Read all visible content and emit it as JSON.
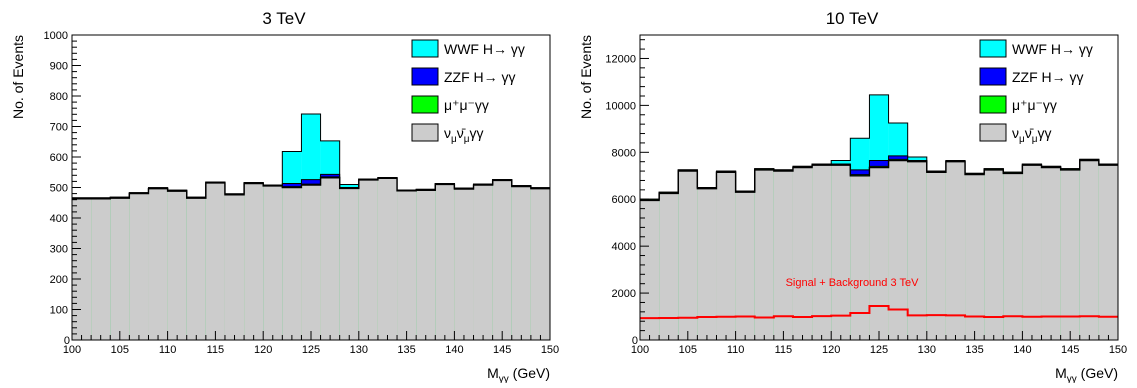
{
  "colors": {
    "wwf": "#00ffff",
    "zzf": "#0000ff",
    "mumu": "#00ff00",
    "nunu": "#cccccc",
    "outline": "#000000",
    "overlay": "#ff0000"
  },
  "chart_data": [
    {
      "type": "histogram-stacked",
      "title": "3 TeV",
      "xlabel": "M",
      "xlabel_sub": "γγ",
      "xlabel_unit": " (GeV)",
      "ylabel": "No. of Events",
      "xlim": [
        100,
        150
      ],
      "ylim": [
        0,
        1000
      ],
      "x_ticks": [
        100,
        105,
        110,
        115,
        120,
        125,
        130,
        135,
        140,
        145,
        150
      ],
      "y_ticks": [
        100,
        200,
        300,
        400,
        500,
        600,
        700,
        800,
        900,
        1000
      ],
      "y_tick_labels": [
        "100",
        "200",
        "300",
        "400",
        "500",
        "600",
        "700",
        "800",
        "900",
        "1000"
      ],
      "bin_edges": [
        100,
        102,
        104,
        106,
        108,
        110,
        112,
        114,
        116,
        118,
        120,
        122,
        124,
        126,
        128,
        130,
        132,
        134,
        136,
        138,
        140,
        142,
        144,
        146,
        148,
        150
      ],
      "legend_position": "top-right",
      "legend": [
        {
          "key": "wwf",
          "text": "WWF H→ γγ"
        },
        {
          "key": "zzf",
          "text": "ZZF H→ γγ"
        },
        {
          "key": "mumu",
          "text": "μ⁺μ⁻γγ"
        },
        {
          "key": "nunu",
          "text": "ν̅"
        }
      ],
      "series": [
        {
          "name": "ν_μν̄_μγγ",
          "key": "nunu",
          "values": [
            463,
            463,
            465,
            480,
            496,
            488,
            465,
            515,
            476,
            513,
            505,
            500,
            508,
            532,
            497,
            525,
            530,
            489,
            491,
            510,
            495,
            508,
            523,
            503,
            496
          ]
        },
        {
          "name": "μ⁺μ⁻γγ",
          "key": "mumu",
          "values": [
            3,
            3,
            3,
            3,
            3,
            3,
            3,
            3,
            3,
            3,
            3,
            3,
            3,
            3,
            3,
            3,
            3,
            3,
            3,
            3,
            3,
            3,
            3,
            3,
            3
          ]
        },
        {
          "name": "ZZF H→ γγ",
          "key": "zzf",
          "values": [
            0,
            0,
            0,
            0,
            0,
            0,
            0,
            0,
            0,
            0,
            0,
            10,
            15,
            8,
            0,
            0,
            0,
            0,
            0,
            0,
            0,
            0,
            0,
            0,
            0
          ]
        },
        {
          "name": "WWF H→ γγ",
          "key": "wwf",
          "values": [
            0,
            0,
            0,
            0,
            0,
            0,
            0,
            0,
            0,
            0,
            0,
            105,
            215,
            110,
            10,
            0,
            0,
            0,
            0,
            0,
            0,
            0,
            0,
            0,
            0
          ]
        }
      ]
    },
    {
      "type": "histogram-stacked",
      "title": "10 TeV",
      "xlabel": "M",
      "xlabel_sub": "γγ",
      "xlabel_unit": " (GeV)",
      "ylabel": "No. of Events",
      "xlim": [
        100,
        150
      ],
      "ylim": [
        0,
        13000
      ],
      "x_ticks": [
        100,
        105,
        110,
        115,
        120,
        125,
        130,
        135,
        140,
        145,
        150
      ],
      "y_ticks": [
        2000,
        4000,
        6000,
        8000,
        10000,
        12000
      ],
      "y_tick_labels": [
        "2000",
        "4000",
        "6000",
        "8000",
        "10000",
        "12000"
      ],
      "bin_edges": [
        100,
        102,
        104,
        106,
        108,
        110,
        112,
        114,
        116,
        118,
        120,
        122,
        124,
        126,
        128,
        130,
        132,
        134,
        136,
        138,
        140,
        142,
        144,
        146,
        148,
        150
      ],
      "legend_position": "top-right",
      "legend": [
        {
          "key": "wwf",
          "text": "WWF H→ γγ"
        },
        {
          "key": "zzf",
          "text": "ZZF H→ γγ"
        },
        {
          "key": "mumu",
          "text": "μ⁺μ⁻γγ"
        },
        {
          "key": "nunu",
          "text": "ν̅"
        }
      ],
      "annotation": "Signal + Background 3 TeV",
      "series": [
        {
          "name": "ν_μν̄_μγγ",
          "key": "nunu",
          "values": [
            5950,
            6250,
            7200,
            6450,
            7150,
            6300,
            7250,
            7200,
            7350,
            7450,
            7450,
            7000,
            7350,
            7650,
            7600,
            7150,
            7600,
            7050,
            7250,
            7100,
            7450,
            7350,
            7250,
            7650,
            7450
          ]
        },
        {
          "name": "μ⁺μ⁻γγ",
          "key": "mumu",
          "values": [
            50,
            50,
            50,
            50,
            50,
            50,
            50,
            50,
            50,
            50,
            50,
            50,
            50,
            50,
            50,
            50,
            50,
            50,
            50,
            50,
            50,
            50,
            50,
            50,
            50
          ]
        },
        {
          "name": "ZZF H→ γγ",
          "key": "zzf",
          "values": [
            0,
            0,
            0,
            0,
            0,
            0,
            0,
            0,
            0,
            0,
            0,
            200,
            250,
            150,
            0,
            0,
            0,
            0,
            0,
            0,
            0,
            0,
            0,
            0,
            0
          ]
        },
        {
          "name": "WWF H→ γγ",
          "key": "wwf",
          "values": [
            0,
            0,
            0,
            0,
            0,
            0,
            0,
            0,
            0,
            0,
            150,
            1350,
            2800,
            1400,
            150,
            0,
            0,
            0,
            0,
            0,
            0,
            0,
            0,
            0,
            0
          ]
        }
      ],
      "overlay": {
        "name": "Signal + Background 3 TeV",
        "values": [
          930,
          940,
          950,
          980,
          990,
          1000,
          960,
          1010,
          980,
          1020,
          1040,
          1150,
          1450,
          1300,
          1050,
          1060,
          1050,
          1000,
          980,
          1010,
          990,
          1000,
          1000,
          1010,
          990
        ]
      }
    }
  ]
}
